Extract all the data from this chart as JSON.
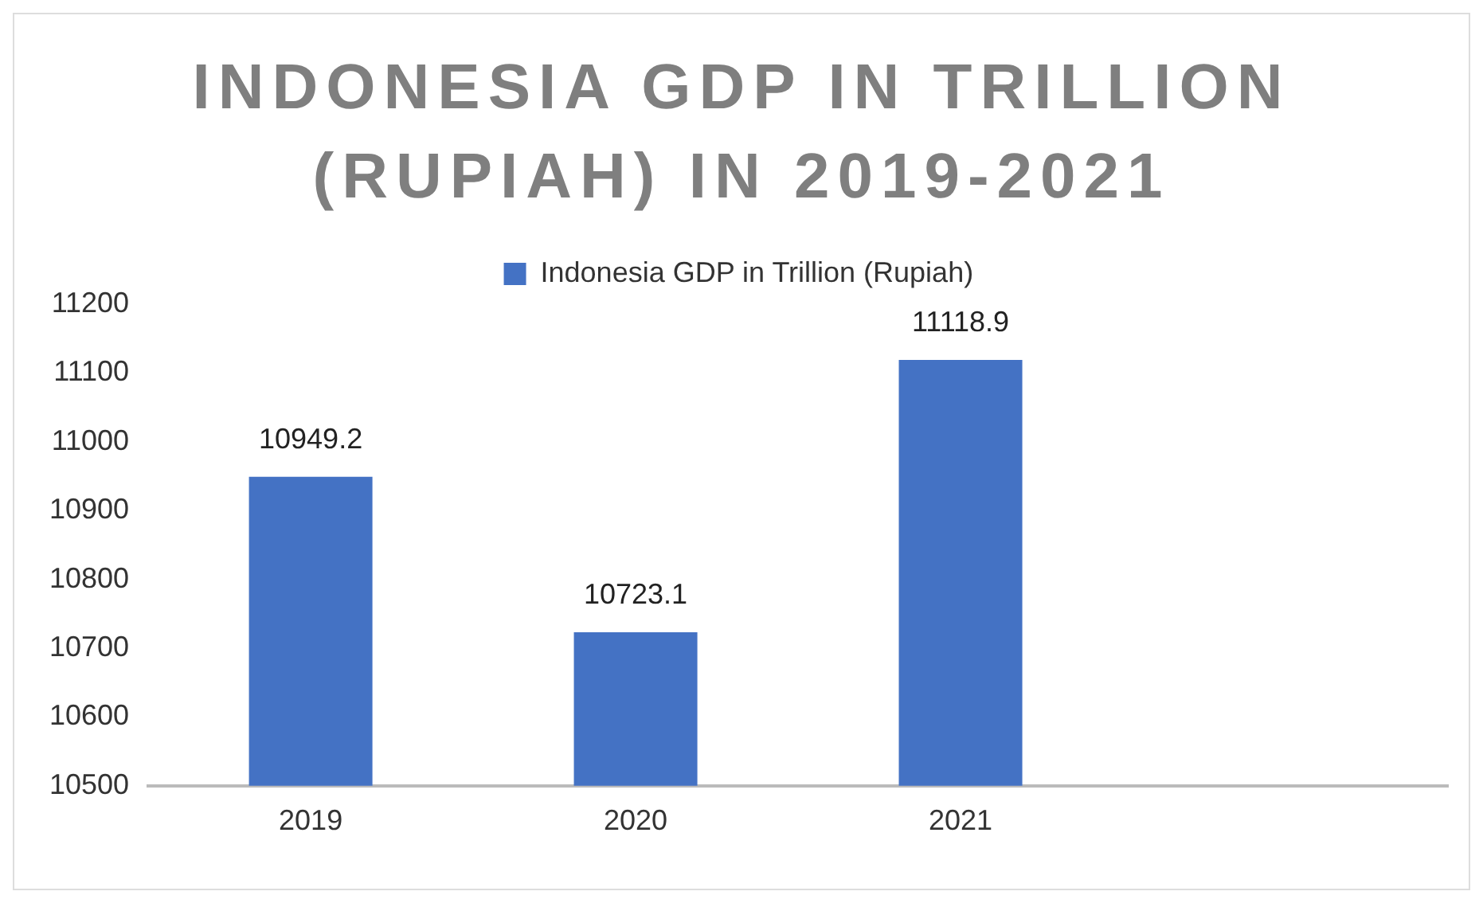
{
  "chart_data": {
    "type": "bar",
    "title": "INDONESIA GDP IN TRILLION (RUPIAH) IN 2019-2021",
    "categories": [
      "2019",
      "2020",
      "2021",
      null
    ],
    "series": [
      {
        "name": "Indonesia GDP in Trillion (Rupiah)",
        "color": "#4472c4",
        "values": [
          10949.2,
          10723.1,
          11118.9,
          null
        ]
      }
    ],
    "ylim": [
      10500,
      11200
    ],
    "yticks": [
      10500,
      10600,
      10700,
      10800,
      10900,
      11000,
      11100,
      11200
    ],
    "grid": false,
    "legend": "top",
    "data_labels": true
  }
}
